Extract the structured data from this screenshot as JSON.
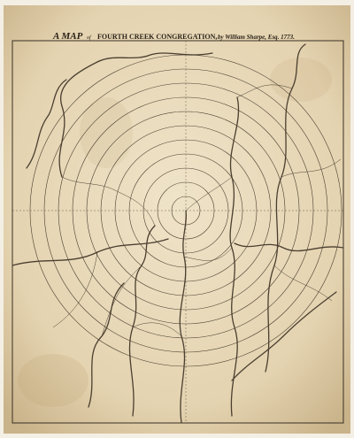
{
  "header": {
    "title": [
      "A MAP",
      "of",
      "FOURTH CREEK CONGREGATION,",
      "by William Sharpe, Esq. 1773."
    ]
  }
}
